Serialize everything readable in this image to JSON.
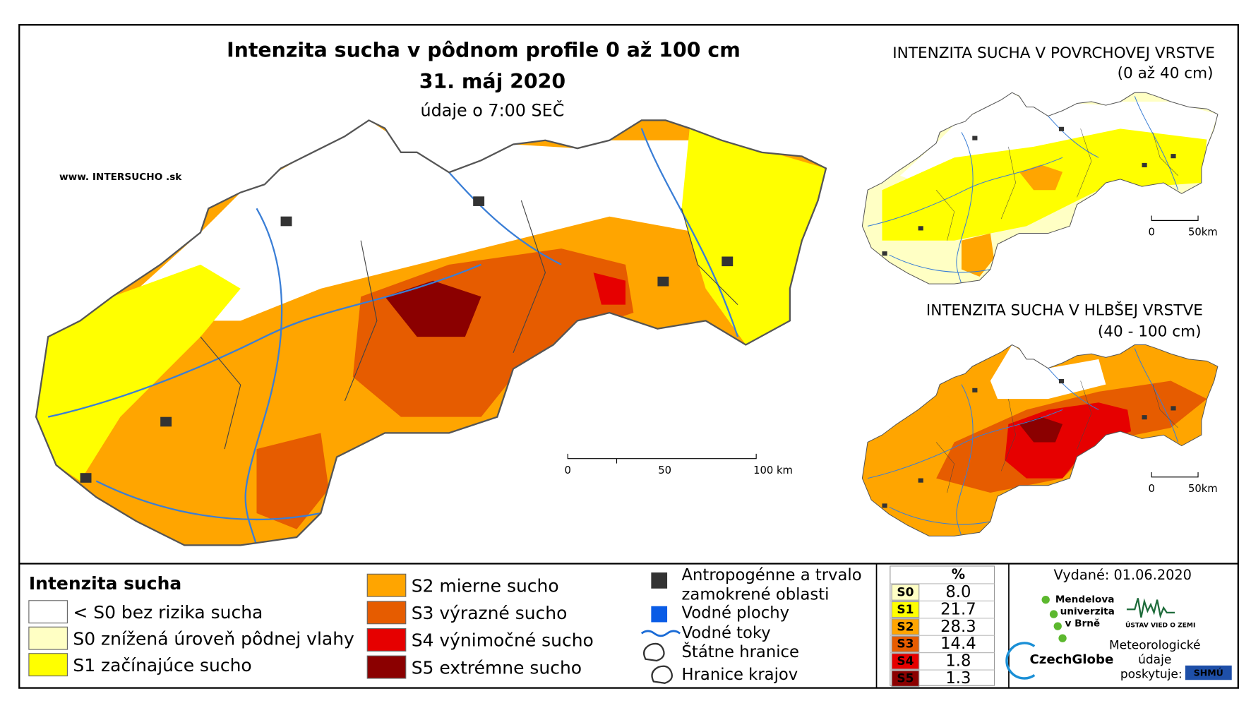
{
  "map": {
    "title": "Intenzita sucha v pôdnom profile 0 až 100 cm",
    "date": "31. máj 2020",
    "time_note": "údaje o 7:00 SEČ",
    "website": "www. INTERSUCHO .sk",
    "scale": [
      "0",
      "50",
      "100 km"
    ],
    "insets": [
      {
        "title": "INTENZITA SUCHA V POVRCHOVEJ VRSTVE",
        "subtitle": "(0 až 40 cm)",
        "scale": [
          "0",
          "50km"
        ]
      },
      {
        "title": "INTENZITA SUCHA V HLBŠEJ VRSTVE",
        "subtitle": "(40 - 100 cm)",
        "scale": [
          "0",
          "50km"
        ]
      }
    ]
  },
  "legend": {
    "title": "Intenzita sucha",
    "classes": [
      {
        "label": "< S0 bez rizika sucha",
        "color": "#ffffff"
      },
      {
        "label": "S0 znížená úroveň pôdnej vlahy",
        "color": "#ffffc4"
      },
      {
        "label": "S1 začínajúce sucho",
        "color": "#ffff00"
      },
      {
        "label": "S2 mierne sucho",
        "color": "#ffa500"
      },
      {
        "label": "S3 výrazné sucho",
        "color": "#e65c00"
      },
      {
        "label": "S4 výnimočné sucho",
        "color": "#e60000"
      },
      {
        "label": "S5 extrémne sucho",
        "color": "#8b0000"
      }
    ],
    "other": [
      {
        "lines": [
          "Antropogénne a trvalo",
          "zamokrené oblasti"
        ],
        "color": "#333333"
      },
      {
        "lines": [
          "Vodné plochy"
        ],
        "color": "#0a5ce6"
      },
      {
        "lines": [
          "Vodné toky"
        ],
        "color": "#1a6bd6"
      },
      {
        "lines": [
          "Štátne hranice"
        ],
        "color": "#333333"
      },
      {
        "lines": [
          "Hranice krajov"
        ],
        "color": "#333333"
      }
    ]
  },
  "stats": {
    "header": "%",
    "rows": [
      [
        "S0",
        "8.0"
      ],
      [
        "S1",
        "21.7"
      ],
      [
        "S2",
        "28.3"
      ],
      [
        "S3",
        "14.4"
      ],
      [
        "S4",
        "1.8"
      ],
      [
        "S5",
        "1.3"
      ]
    ]
  },
  "footer": {
    "issued": "Vydané: 01.06.2020",
    "mendel": [
      "Mendelova",
      "univerzita",
      "v Brně"
    ],
    "ustav": "ÚSTAV VIED O ZEMI",
    "czechglobe": "CzechGlobe",
    "provider": [
      "Meteorologické",
      "údaje",
      "poskytuje:"
    ],
    "shmu": "SHMÚ"
  }
}
